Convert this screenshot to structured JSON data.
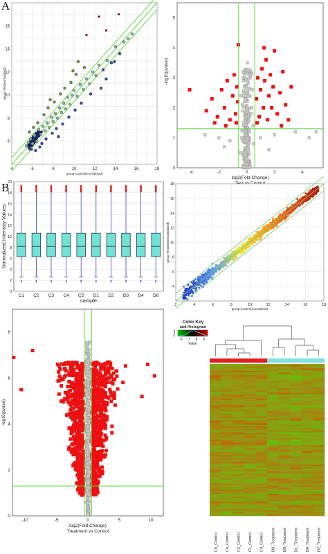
{
  "panel_labels": {
    "a": "A",
    "b": "B"
  },
  "chart_data": [
    {
      "id": "scatter_a",
      "type": "scatter",
      "xlabel": "group-Control(normalized)",
      "ylabel": "group-Test(normalized)",
      "xlim": [
        4,
        18
      ],
      "ylim": [
        4,
        18
      ],
      "xticks": [
        "4",
        "6",
        "8",
        "10",
        "12",
        "14",
        "16",
        "18"
      ],
      "yticks": [
        "6",
        "8",
        "10",
        "12",
        "14",
        "16"
      ],
      "grid": true,
      "fold_lines": [
        -0.58,
        0,
        0.58
      ],
      "points": [
        [
          5.4,
          5.6
        ],
        [
          5.6,
          5.9
        ],
        [
          5.8,
          6.2
        ],
        [
          6.0,
          5.8
        ],
        [
          6.2,
          6.5
        ],
        [
          6.4,
          6.0
        ],
        [
          6.6,
          7.0
        ],
        [
          6.8,
          6.6
        ],
        [
          7.0,
          7.3
        ],
        [
          7.2,
          6.9
        ],
        [
          7.4,
          7.6
        ],
        [
          7.6,
          7.2
        ],
        [
          7.8,
          8.1
        ],
        [
          8.0,
          7.7
        ],
        [
          8.2,
          8.4
        ],
        [
          8.4,
          8.0
        ],
        [
          8.6,
          8.9
        ],
        [
          8.8,
          8.5
        ],
        [
          9.0,
          9.3
        ],
        [
          9.2,
          8.8
        ],
        [
          9.4,
          9.8
        ],
        [
          9.6,
          9.2
        ],
        [
          9.8,
          10.0
        ],
        [
          10.0,
          10.4
        ],
        [
          10.3,
          9.9
        ],
        [
          10.6,
          10.9
        ],
        [
          10.9,
          10.5
        ],
        [
          11.2,
          11.4
        ],
        [
          11.5,
          11.0
        ],
        [
          11.8,
          12.0
        ],
        [
          12.1,
          11.7
        ],
        [
          12.4,
          12.6
        ],
        [
          12.8,
          12.2
        ],
        [
          13.2,
          13.0
        ],
        [
          13.6,
          12.8
        ],
        [
          14.0,
          14.2
        ],
        [
          14.4,
          13.6
        ],
        [
          14.8,
          14.6
        ],
        [
          15.2,
          14.9
        ],
        [
          15.6,
          15.3
        ],
        [
          6.1,
          7.2
        ],
        [
          6.5,
          7.6
        ],
        [
          7.1,
          8.3
        ],
        [
          7.5,
          8.9
        ],
        [
          8.1,
          9.4
        ],
        [
          8.7,
          10.1
        ],
        [
          9.1,
          10.6
        ],
        [
          9.7,
          11.1
        ],
        [
          10.2,
          11.8
        ],
        [
          11.0,
          12.4
        ],
        [
          6.3,
          5.2
        ],
        [
          6.9,
          5.8
        ],
        [
          7.3,
          6.2
        ],
        [
          7.9,
          6.7
        ],
        [
          8.3,
          7.1
        ],
        [
          8.9,
          7.5
        ],
        [
          9.5,
          8.1
        ],
        [
          10.1,
          8.7
        ],
        [
          10.7,
          9.3
        ],
        [
          11.6,
          10.1
        ],
        [
          5.7,
          6.8
        ],
        [
          5.9,
          5.3
        ],
        [
          6.7,
          5.5
        ],
        [
          7.7,
          9.6
        ],
        [
          8.5,
          6.4
        ],
        [
          9.9,
          12.1
        ],
        [
          12.6,
          10.6
        ],
        [
          13.1,
          11.4
        ],
        [
          13.9,
          12.9
        ],
        [
          10.4,
          12.9
        ]
      ],
      "highlight_points": [
        [
          12.4,
          16.8
        ],
        [
          13.1,
          15.6
        ],
        [
          14.3,
          17.0
        ],
        [
          11.2,
          15.2
        ]
      ]
    },
    {
      "id": "volcano_a",
      "type": "scatter",
      "xlabel": "log2(Fold Change)",
      "subtitle": "Test vs Control",
      "ylabel": "-log10(pvalue)",
      "xlim": [
        -5,
        5.5
      ],
      "ylim": [
        0,
        5.5
      ],
      "xticks": [
        "-4",
        "-2",
        "0",
        "2",
        "4"
      ],
      "yticks": [
        "0",
        "1",
        "2",
        "3",
        "4",
        "5"
      ],
      "vlines": [
        -0.58,
        0.58
      ],
      "hline": 1.3,
      "red_points": [
        [
          -4.1,
          2.6
        ],
        [
          -2.9,
          1.9
        ],
        [
          -2.5,
          2.3
        ],
        [
          -2.1,
          1.7
        ],
        [
          -1.8,
          2.6
        ],
        [
          -1.6,
          2.0
        ],
        [
          -1.4,
          2.9
        ],
        [
          -1.2,
          1.6
        ],
        [
          -1.0,
          2.4
        ],
        [
          -0.9,
          3.1
        ],
        [
          -0.8,
          1.8
        ],
        [
          -0.7,
          2.7
        ],
        [
          -0.6,
          4.1
        ],
        [
          -0.65,
          2.2
        ],
        [
          0.7,
          2.3
        ],
        [
          0.8,
          3.0
        ],
        [
          0.9,
          1.7
        ],
        [
          1.0,
          2.6
        ],
        [
          1.1,
          3.3
        ],
        [
          1.2,
          2.0
        ],
        [
          1.3,
          2.9
        ],
        [
          1.4,
          3.6
        ],
        [
          1.5,
          1.6
        ],
        [
          1.6,
          2.4
        ],
        [
          1.7,
          3.1
        ],
        [
          1.8,
          2.0
        ],
        [
          1.9,
          2.7
        ],
        [
          2.0,
          3.9
        ],
        [
          2.2,
          1.8
        ],
        [
          2.4,
          2.5
        ],
        [
          2.6,
          3.2
        ],
        [
          2.8,
          2.1
        ],
        [
          3.0,
          1.6
        ],
        [
          3.2,
          2.7
        ],
        [
          1.25,
          4.0
        ],
        [
          0.75,
          1.5
        ],
        [
          -0.75,
          1.5
        ],
        [
          -1.5,
          1.4
        ],
        [
          2.5,
          1.4
        ],
        [
          -2.3,
          1.5
        ]
      ],
      "gray_points": [
        [
          0.0,
          0.3
        ],
        [
          0.1,
          0.6
        ],
        [
          -0.1,
          0.9
        ],
        [
          0.2,
          1.2
        ],
        [
          -0.2,
          1.5
        ],
        [
          0.3,
          1.8
        ],
        [
          -0.3,
          2.1
        ],
        [
          0.15,
          2.4
        ],
        [
          -0.15,
          2.7
        ],
        [
          0.25,
          3.0
        ],
        [
          -0.25,
          3.2
        ],
        [
          0.35,
          2.0
        ],
        [
          -0.35,
          1.0
        ],
        [
          0.45,
          1.4
        ],
        [
          -0.45,
          0.5
        ],
        [
          0.05,
          3.5
        ],
        [
          -0.05,
          1.7
        ],
        [
          0.4,
          2.6
        ],
        [
          -0.4,
          2.4
        ],
        [
          0.5,
          0.8
        ],
        [
          -3.0,
          1.1
        ],
        [
          -2.0,
          1.0
        ],
        [
          -1.2,
          0.9
        ],
        [
          1.0,
          1.0
        ],
        [
          2.0,
          1.1
        ],
        [
          3.5,
          1.2
        ],
        [
          4.5,
          1.0
        ],
        [
          5.0,
          1.2
        ],
        [
          -1.6,
          0.7
        ],
        [
          1.6,
          0.6
        ]
      ]
    },
    {
      "id": "boxplot_b",
      "type": "box",
      "xlabel": "sample",
      "ylabel": "Normalized Intensity Values",
      "ylim": [
        0,
        20
      ],
      "yticks": [
        "0",
        "2",
        "4",
        "6",
        "8",
        "10",
        "12",
        "14",
        "16",
        "18",
        "20"
      ],
      "categories": [
        "C1",
        "C2",
        "C3",
        "C4",
        "C5",
        "D1",
        "D2",
        "D3",
        "D4",
        "D6"
      ],
      "stats": {
        "min": 2.6,
        "q1": 6.3,
        "median": 8.2,
        "q3": 10.6,
        "max": 18.2
      }
    },
    {
      "id": "scatter_b",
      "type": "scatter",
      "xlabel": "group-Control(normalized)",
      "ylabel": "group-Treatment(normalized)",
      "xlim": [
        2,
        18
      ],
      "ylim": [
        2,
        18
      ],
      "xticks": [
        "2",
        "4",
        "6",
        "8",
        "10",
        "12",
        "14",
        "16",
        "18"
      ],
      "yticks": [
        "4",
        "6",
        "8",
        "10",
        "12",
        "14",
        "16",
        "18"
      ],
      "grid": true
    },
    {
      "id": "volcano_b",
      "type": "scatter",
      "xlabel": "log2(Fold Change)",
      "subtitle": "Treatment vs Control",
      "ylabel": "-log10(pvalue)",
      "xlim": [
        -12,
        12
      ],
      "ylim": [
        0,
        9
      ],
      "xticks": [
        "-10",
        "-5",
        "0",
        "5",
        "10"
      ],
      "yticks": [
        "0",
        "2",
        "4",
        "6",
        "8"
      ],
      "vlines": [
        -0.58,
        0.58
      ],
      "hline": 1.3
    },
    {
      "id": "heatmap_b",
      "type": "heatmap",
      "colorkey_title": "Color Key",
      "colorkey_subtitle": "and Histogram",
      "colorkey_ticks": [
        "6",
        "7",
        "8",
        "9"
      ],
      "colorkey_xlabel": "Value",
      "colorkey_ylabel": "Count",
      "column_labels": [
        "C5_Control",
        "C4_Control",
        "C2_Control",
        "C1_Control",
        "C3_Control",
        "D6_Treatment",
        "D3_Treatment",
        "D1_Treatment",
        "D4_Treatment",
        "D2_Treatment"
      ],
      "groups": [
        {
          "name": "Control",
          "color": "#e02020"
        },
        {
          "name": "Treatment",
          "color": "#7fe0e0"
        }
      ]
    }
  ]
}
